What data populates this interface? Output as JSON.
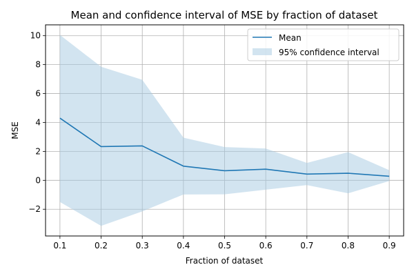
{
  "chart_data": {
    "type": "line",
    "title": "Mean and confidence interval of MSE by fraction of dataset",
    "xlabel": "Fraction of dataset",
    "ylabel": "MSE",
    "x": [
      0.1,
      0.2,
      0.3,
      0.4,
      0.5,
      0.6,
      0.7,
      0.8,
      0.9
    ],
    "xlim": [
      0.065,
      0.935
    ],
    "ylim": [
      -3.85,
      10.75
    ],
    "xticks": [
      "0.1",
      "0.2",
      "0.3",
      "0.4",
      "0.5",
      "0.6",
      "0.7",
      "0.8",
      "0.9"
    ],
    "yticks": [
      {
        "value": -2,
        "label": "−2"
      },
      {
        "value": 0,
        "label": "0"
      },
      {
        "value": 2,
        "label": "2"
      },
      {
        "value": 4,
        "label": "4"
      },
      {
        "value": 6,
        "label": "6"
      },
      {
        "value": 8,
        "label": "8"
      },
      {
        "value": 10,
        "label": "10"
      }
    ],
    "grid": true,
    "legend_position": "top-right",
    "series": [
      {
        "name": "Mean",
        "kind": "line",
        "color": "#1f77b4",
        "values": [
          4.3,
          2.33,
          2.38,
          0.98,
          0.66,
          0.77,
          0.43,
          0.49,
          0.28
        ]
      },
      {
        "name": "95% confidence interval",
        "kind": "band",
        "color": "#a6c9e2",
        "lower": [
          -1.5,
          -3.15,
          -2.15,
          -0.98,
          -0.97,
          -0.65,
          -0.33,
          -0.9,
          -0.05
        ],
        "upper": [
          10.05,
          7.85,
          6.95,
          2.95,
          2.3,
          2.2,
          1.2,
          1.95,
          0.7
        ]
      }
    ]
  }
}
